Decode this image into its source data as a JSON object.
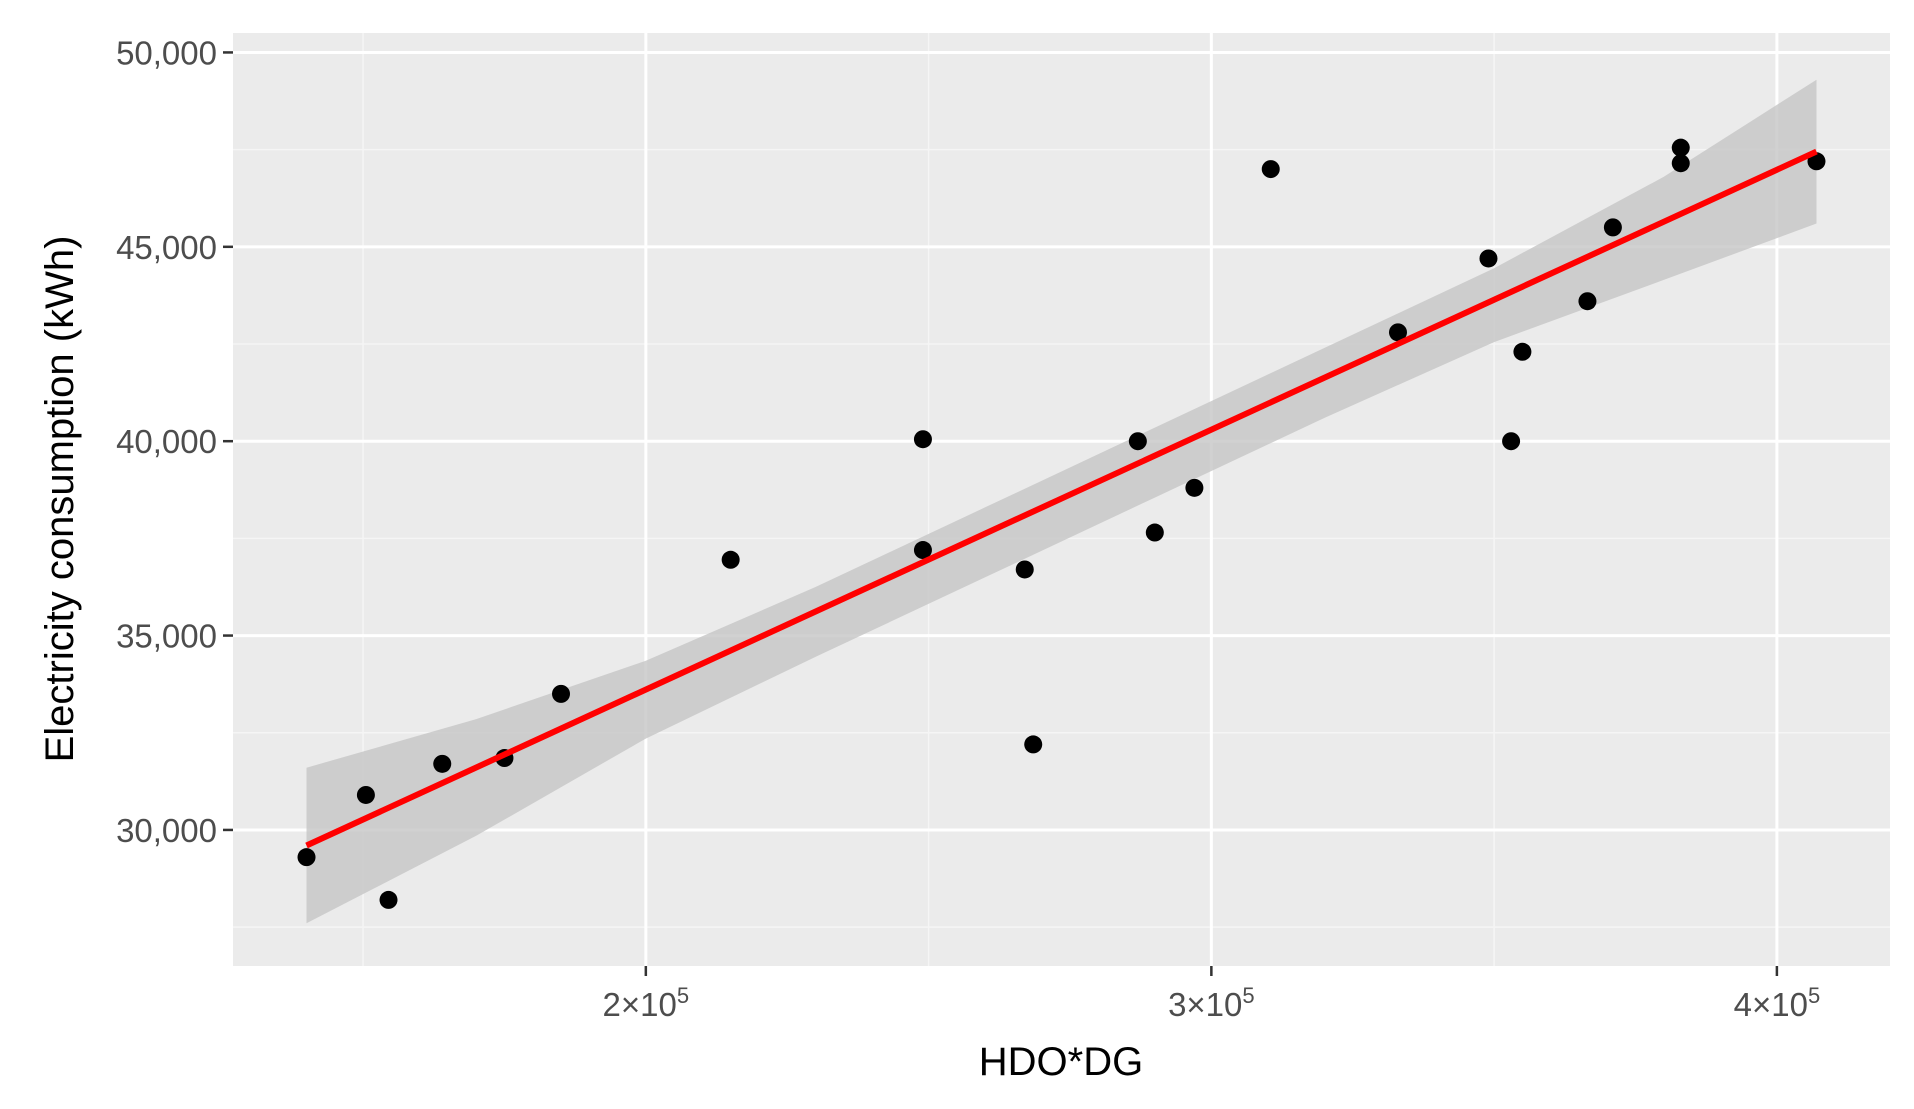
{
  "colors": {
    "panel_background": "#ebebeb",
    "grid_major": "#ffffff",
    "grid_minor": "#f5f5f5",
    "points": "#000000",
    "fit_line": "#ff0000",
    "confidence_band": "#c6c6c6",
    "tick_text": "#4d4d4d",
    "axis_title_text": "#000000"
  },
  "chart_data": {
    "type": "scatter",
    "title": "",
    "xlabel": "HDO*DG",
    "ylabel": "Electricity consumption (kWh)",
    "xlim": [
      127000,
      420000
    ],
    "ylim": [
      26500,
      50500
    ],
    "x_ticks": [
      {
        "value": 200000,
        "mantissa": "2",
        "exponent": "5"
      },
      {
        "value": 300000,
        "mantissa": "3",
        "exponent": "5"
      },
      {
        "value": 400000,
        "mantissa": "4",
        "exponent": "5"
      }
    ],
    "x_tick_separator": "×10",
    "x_minor_ticks": [
      150000,
      250000,
      350000
    ],
    "y_ticks": [
      {
        "value": 30000,
        "label": "30,000"
      },
      {
        "value": 35000,
        "label": "35,000"
      },
      {
        "value": 40000,
        "label": "40,000"
      },
      {
        "value": 45000,
        "label": "45,000"
      },
      {
        "value": 50000,
        "label": "50,000"
      }
    ],
    "y_minor_ticks": [
      27500,
      32500,
      37500,
      42500,
      47500
    ],
    "grid": true,
    "points": [
      {
        "x": 140000,
        "y": 29300
      },
      {
        "x": 150500,
        "y": 30900
      },
      {
        "x": 154500,
        "y": 28200
      },
      {
        "x": 164000,
        "y": 31700
      },
      {
        "x": 175000,
        "y": 31850
      },
      {
        "x": 185000,
        "y": 33500
      },
      {
        "x": 215000,
        "y": 36950
      },
      {
        "x": 249000,
        "y": 40050
      },
      {
        "x": 249000,
        "y": 37200
      },
      {
        "x": 267000,
        "y": 36700
      },
      {
        "x": 268500,
        "y": 32200
      },
      {
        "x": 287000,
        "y": 40000
      },
      {
        "x": 290000,
        "y": 37650
      },
      {
        "x": 297000,
        "y": 38800
      },
      {
        "x": 310500,
        "y": 47000
      },
      {
        "x": 333000,
        "y": 42800
      },
      {
        "x": 349000,
        "y": 44700
      },
      {
        "x": 353000,
        "y": 40000
      },
      {
        "x": 355000,
        "y": 42300
      },
      {
        "x": 366500,
        "y": 43600
      },
      {
        "x": 371000,
        "y": 45500
      },
      {
        "x": 383000,
        "y": 47550
      },
      {
        "x": 383000,
        "y": 47150
      },
      {
        "x": 407000,
        "y": 47200
      }
    ],
    "fit_line": {
      "x_start": 140000,
      "y_start": 29600,
      "x_end": 407000,
      "y_end": 47450
    },
    "confidence_band": {
      "x": [
        140000,
        170000,
        200000,
        230000,
        260000,
        290000,
        320000,
        350000,
        380000,
        407000
      ],
      "upper": [
        31600,
        32850,
        34350,
        36250,
        38300,
        40350,
        42400,
        44450,
        46800,
        49300
      ],
      "lower": [
        27600,
        29850,
        32350,
        34450,
        36500,
        38550,
        40600,
        42550,
        44150,
        45600
      ]
    }
  }
}
